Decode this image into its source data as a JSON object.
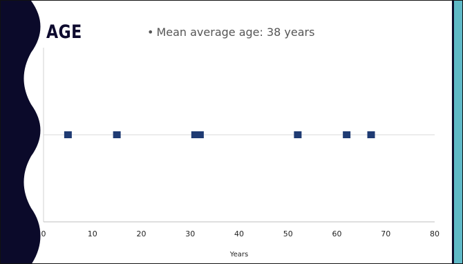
{
  "slide": {
    "title": "AGE",
    "bullet": "Mean average age: 38 years"
  },
  "colors": {
    "sidebar": "#0b0a2a",
    "accent": "#5fb9c7",
    "marker": "#1f3b73",
    "gridline": "#d9d9d9"
  },
  "chart_data": {
    "type": "scatter",
    "title": "",
    "xlabel": "Years",
    "ylabel": "",
    "xlim": [
      0,
      80
    ],
    "ylim": [
      0,
      2
    ],
    "xticks": [
      0,
      10,
      20,
      30,
      40,
      50,
      60,
      70,
      80
    ],
    "grid": false,
    "legend": "none",
    "series": [
      {
        "x": [
          5,
          15,
          31,
          32,
          52,
          62,
          67
        ],
        "y": [
          1,
          1,
          1,
          1,
          1,
          1,
          1
        ]
      }
    ]
  }
}
